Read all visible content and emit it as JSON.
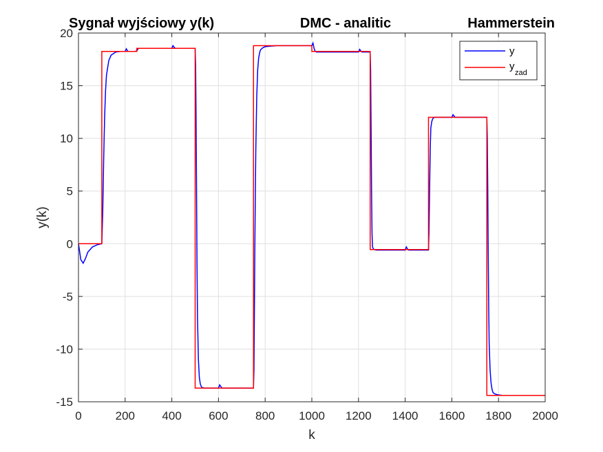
{
  "chart_data": {
    "type": "line",
    "titles": [
      "Sygnał wyjściowy y(k)",
      "DMC - analitic",
      "Hammerstein"
    ],
    "xlabel": "k",
    "ylabel": "y(k)",
    "xlim": [
      0,
      2000
    ],
    "ylim": [
      -15,
      20
    ],
    "xticks": [
      0,
      200,
      400,
      600,
      800,
      1000,
      1200,
      1400,
      1600,
      1800,
      2000
    ],
    "yticks": [
      -15,
      -10,
      -5,
      0,
      5,
      10,
      15,
      20
    ],
    "xtick_labels": [
      "0",
      "200",
      "400",
      "600",
      "800",
      "1000",
      "1200",
      "1400",
      "1600",
      "1800",
      "2000"
    ],
    "ytick_labels": [
      "-15",
      "-10",
      "-5",
      "0",
      "5",
      "10",
      "15",
      "20"
    ],
    "grid": true,
    "legend_position": "top-right",
    "legend": {
      "y_label": "y",
      "yzad_main": "y",
      "yzad_sub": "zad"
    },
    "series": [
      {
        "name": "y",
        "color": "#0000ff",
        "x": [
          0,
          10,
          20,
          30,
          40,
          60,
          80,
          100,
          104,
          108,
          112,
          116,
          120,
          130,
          140,
          160,
          180,
          200,
          205,
          210,
          215,
          220,
          240,
          250,
          255,
          260,
          265,
          270,
          300,
          350,
          400,
          405,
          410,
          415,
          420,
          430,
          460,
          490,
          500,
          502,
          504,
          506,
          508,
          510,
          514,
          518,
          522,
          526,
          530,
          540,
          560,
          600,
          605,
          610,
          615,
          620,
          640,
          700,
          750,
          752,
          754,
          756,
          758,
          760,
          764,
          768,
          772,
          776,
          780,
          790,
          800,
          820,
          850,
          900,
          950,
          1000,
          1005,
          1010,
          1015,
          1020,
          1050,
          1100,
          1200,
          1205,
          1210,
          1215,
          1220,
          1250,
          1252,
          1254,
          1256,
          1258,
          1260,
          1264,
          1268,
          1272,
          1276,
          1280,
          1290,
          1300,
          1350,
          1400,
          1405,
          1410,
          1415,
          1420,
          1450,
          1500,
          1502,
          1504,
          1506,
          1508,
          1510,
          1514,
          1518,
          1522,
          1526,
          1530,
          1540,
          1560,
          1600,
          1605,
          1610,
          1615,
          1620,
          1650,
          1700,
          1750,
          1752,
          1754,
          1756,
          1758,
          1760,
          1764,
          1768,
          1772,
          1776,
          1780,
          1790,
          1800,
          1820,
          1850,
          1900,
          1950,
          2000
        ],
        "y": [
          0,
          -1.5,
          -1.85,
          -1.4,
          -0.8,
          -0.3,
          -0.1,
          0,
          3,
          8,
          12,
          14.5,
          16,
          17.4,
          17.9,
          18.2,
          18.25,
          18.25,
          18.5,
          18.3,
          18.25,
          18.25,
          18.25,
          18.3,
          18.5,
          18.55,
          18.55,
          18.55,
          18.55,
          18.55,
          18.55,
          18.8,
          18.65,
          18.55,
          18.55,
          18.55,
          18.55,
          18.55,
          18.55,
          17,
          12,
          5,
          -2,
          -7,
          -11,
          -12.7,
          -13.3,
          -13.55,
          -13.65,
          -13.7,
          -13.7,
          -13.7,
          -13.4,
          -13.55,
          -13.7,
          -13.7,
          -13.7,
          -13.7,
          -13.7,
          -12,
          -6,
          0,
          5,
          9,
          14,
          16.5,
          17.6,
          18.1,
          18.4,
          18.6,
          18.7,
          18.75,
          18.8,
          18.8,
          18.8,
          18.8,
          19.05,
          18.5,
          18.25,
          18.2,
          18.2,
          18.2,
          18.2,
          18.45,
          18.3,
          18.2,
          18.2,
          18.2,
          16.5,
          11,
          5,
          1,
          -0.3,
          -0.5,
          -0.55,
          -0.58,
          -0.6,
          -0.6,
          -0.6,
          -0.6,
          -0.6,
          -0.6,
          -0.3,
          -0.5,
          -0.6,
          -0.6,
          -0.6,
          -0.6,
          1,
          4,
          7,
          9.5,
          11,
          11.6,
          11.85,
          11.95,
          12,
          12,
          12,
          12,
          12,
          12.25,
          12.1,
          12,
          12,
          12,
          12,
          12,
          10,
          5,
          -1,
          -6,
          -9.5,
          -12,
          -13.2,
          -13.8,
          -14.1,
          -14.2,
          -14.3,
          -14.35,
          -14.4,
          -14.4,
          -14.4,
          -14.4,
          -14.4
        ]
      },
      {
        "name": "y_zad",
        "color": "#ff0000",
        "x": [
          0,
          100,
          100,
          250,
          250,
          500,
          500,
          750,
          750,
          1000,
          1000,
          1250,
          1250,
          1500,
          1500,
          1750,
          1750,
          2000
        ],
        "y": [
          0,
          0,
          18.25,
          18.25,
          18.55,
          18.55,
          -13.7,
          -13.7,
          18.8,
          18.8,
          18.25,
          18.25,
          -0.55,
          -0.55,
          12,
          12,
          -14.4,
          -14.4
        ]
      }
    ]
  }
}
